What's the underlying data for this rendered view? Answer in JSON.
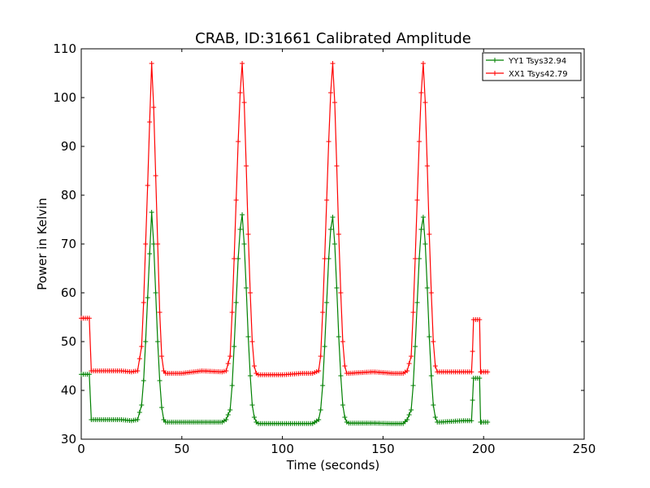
{
  "chart_data": {
    "type": "line",
    "title": "CRAB, ID:31661 Calibrated Amplitude",
    "xlabel": "Time (seconds)",
    "ylabel": "Power in Kelvin",
    "xlim": [
      0,
      250
    ],
    "ylim": [
      30,
      110
    ],
    "xticks": [
      0,
      50,
      100,
      150,
      200,
      250
    ],
    "yticks": [
      30,
      40,
      50,
      60,
      70,
      80,
      90,
      100,
      110
    ],
    "grid": false,
    "legend_position": "top-right",
    "marker": "+",
    "series": [
      {
        "name": "YY1 Tsys32.94",
        "color": "#008000",
        "x": [
          0,
          4,
          5,
          10,
          20,
          25,
          28,
          30,
          31,
          32,
          33,
          34,
          35,
          36,
          37,
          38,
          39,
          40,
          41,
          42,
          50,
          60,
          70,
          72,
          74,
          75,
          76,
          77,
          78,
          79,
          80,
          81,
          82,
          83,
          84,
          85,
          86,
          87,
          88,
          100,
          110,
          115,
          118,
          119,
          120,
          121,
          122,
          123,
          124,
          125,
          126,
          127,
          128,
          129,
          130,
          131,
          132,
          133,
          145,
          155,
          160,
          162,
          164,
          165,
          166,
          167,
          168,
          169,
          170,
          171,
          172,
          173,
          174,
          175,
          176,
          177,
          178,
          190,
          194,
          194.5,
          195,
          196,
          197,
          198,
          198.5,
          199,
          200,
          202
        ],
        "values": [
          43.3,
          43.3,
          34,
          34,
          34,
          33.8,
          34,
          37,
          42,
          50,
          59,
          68,
          76.5,
          70,
          60,
          50,
          42,
          36.5,
          34,
          33.5,
          33.5,
          33.5,
          33.5,
          34,
          36,
          41,
          49,
          58,
          67,
          73,
          76,
          70,
          61,
          51,
          43,
          37,
          34.5,
          33.5,
          33.2,
          33.2,
          33.2,
          33.2,
          34,
          36,
          41,
          49,
          58,
          67,
          73,
          75.5,
          70,
          61,
          51,
          43,
          37,
          34.5,
          33.5,
          33.3,
          33.3,
          33.2,
          33.2,
          34,
          36,
          41,
          49,
          58,
          67,
          73,
          75.5,
          70,
          61,
          51,
          43,
          37,
          34.5,
          33.5,
          33.5,
          33.8,
          33.8,
          38,
          42.5,
          42.5,
          42.5,
          42.5,
          33.5,
          33.5,
          33.5,
          33.5
        ]
      },
      {
        "name": "XX1 Tsys42.79",
        "color": "#ff0000",
        "x": [
          0,
          4,
          5,
          10,
          20,
          25,
          28,
          30,
          31,
          32,
          33,
          34,
          35,
          36,
          37,
          38,
          39,
          40,
          41,
          42,
          50,
          60,
          70,
          72,
          74,
          75,
          76,
          77,
          78,
          79,
          80,
          81,
          82,
          83,
          84,
          85,
          86,
          87,
          88,
          100,
          110,
          115,
          118,
          119,
          120,
          121,
          122,
          123,
          124,
          125,
          126,
          127,
          128,
          129,
          130,
          131,
          132,
          133,
          145,
          155,
          160,
          162,
          164,
          165,
          166,
          167,
          168,
          169,
          170,
          171,
          172,
          173,
          174,
          175,
          176,
          177,
          178,
          190,
          194,
          194.5,
          195,
          196,
          197,
          198,
          198.5,
          199,
          200,
          202
        ],
        "values": [
          54.8,
          54.8,
          44,
          44,
          44,
          43.8,
          44,
          49,
          58,
          70,
          82,
          95,
          107,
          98,
          84,
          70,
          56,
          47,
          44,
          43.5,
          43.5,
          44,
          43.8,
          44,
          47,
          56,
          67,
          79,
          91,
          101,
          107,
          99,
          86,
          72,
          60,
          50,
          45,
          43.5,
          43.2,
          43.2,
          43.5,
          43.5,
          44,
          47,
          56,
          67,
          79,
          91,
          101,
          107,
          99,
          86,
          72,
          60,
          50,
          45,
          43.5,
          43.5,
          43.8,
          43.5,
          43.5,
          44,
          47,
          56,
          67,
          79,
          91,
          101,
          107,
          99,
          86,
          72,
          60,
          50,
          45,
          43.8,
          43.8,
          43.8,
          43.8,
          48,
          54.5,
          54.5,
          54.5,
          54.5,
          43.8,
          43.8,
          43.8,
          43.8
        ]
      }
    ]
  }
}
